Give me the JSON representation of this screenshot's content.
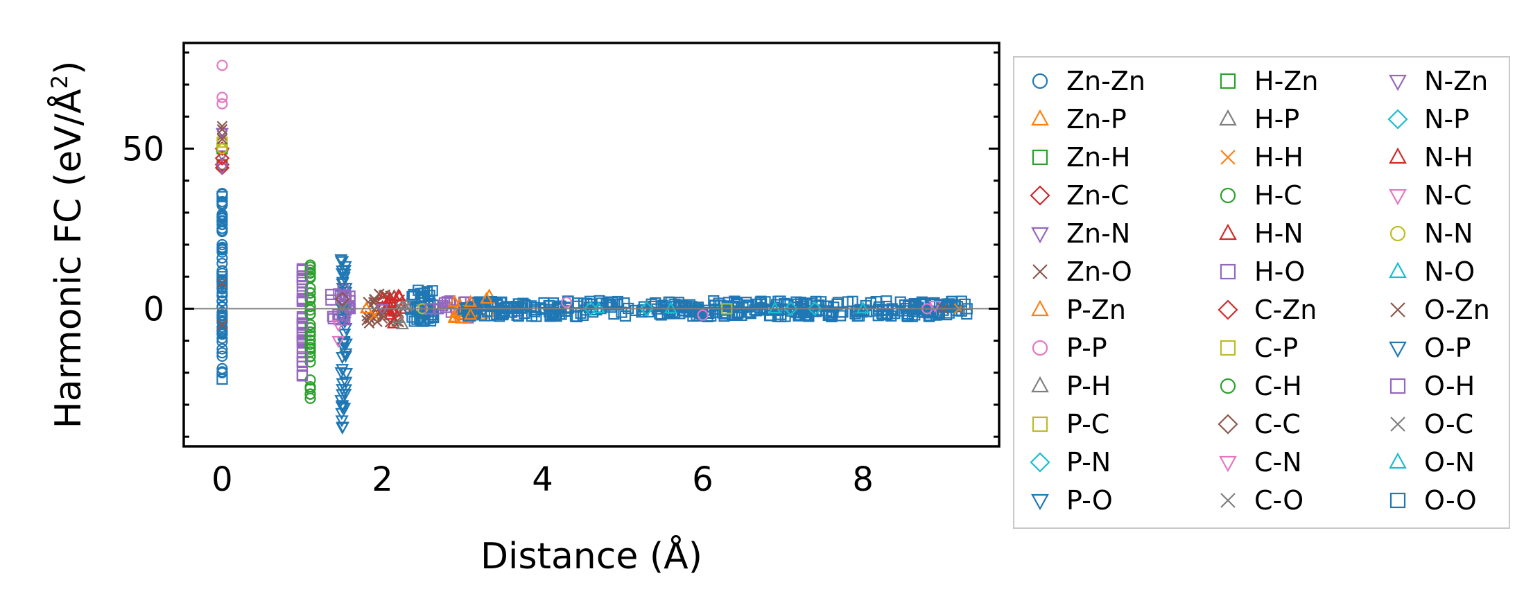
{
  "chart_data": {
    "type": "scatter",
    "xlabel": "Distance (Å)",
    "ylabel_main": "Harmonic FC (eV/Å",
    "ylabel_sup": "2",
    "ylabel_end": ")",
    "xlim": [
      -0.48,
      9.7
    ],
    "ylim": [
      -43,
      83
    ],
    "xticks": [
      0,
      2,
      4,
      6,
      8
    ],
    "yticks": [
      0,
      50
    ],
    "zero_line": true,
    "grid": false,
    "legend_position": "outside-right",
    "legend_columns": 3,
    "series": [
      {
        "name": "Zn-Zn",
        "marker": "circle",
        "color": "#1f77b4",
        "x": [
          0,
          0,
          0,
          0,
          0
        ],
        "y": [
          36,
          20,
          5,
          -8,
          -20
        ]
      },
      {
        "name": "Zn-P",
        "marker": "triangle-up",
        "color": "#ff7f0e",
        "x": [
          2.9,
          3.1,
          3.3
        ],
        "y": [
          2,
          -2,
          3
        ]
      },
      {
        "name": "Zn-H",
        "marker": "square",
        "color": "#2ca02c",
        "x": [
          0,
          0
        ],
        "y": [
          50,
          45
        ]
      },
      {
        "name": "Zn-C",
        "marker": "diamond",
        "color": "#d62728",
        "x": [
          0,
          0,
          0
        ],
        "y": [
          50,
          45,
          44
        ]
      },
      {
        "name": "Zn-N",
        "marker": "triangle-down",
        "color": "#9467bd",
        "x": [
          0,
          0
        ],
        "y": [
          48,
          44
        ]
      },
      {
        "name": "Zn-O",
        "marker": "x",
        "color": "#8c564b",
        "x": [
          0,
          0,
          0,
          0,
          1.9,
          2.0,
          2.1,
          2.2
        ],
        "y": [
          57,
          54,
          8,
          -5,
          2,
          -3,
          4,
          -1
        ]
      },
      {
        "name": "P-Zn",
        "marker": "triangle-up",
        "color": "#ff7f0e",
        "x": [
          1.8,
          2.9,
          3.1
        ],
        "y": [
          0,
          -3,
          2
        ]
      },
      {
        "name": "P-P",
        "marker": "circle",
        "color": "#e377c2",
        "x": [
          0,
          0,
          0,
          4.3,
          6.0,
          8.8
        ],
        "y": [
          76,
          66,
          64,
          2,
          -2,
          0
        ]
      },
      {
        "name": "P-H",
        "marker": "triangle-up",
        "color": "#7f7f7f",
        "x": [
          2.2,
          2.3
        ],
        "y": [
          -3,
          1
        ]
      },
      {
        "name": "P-C",
        "marker": "square",
        "color": "#bcbd22",
        "x": [
          0,
          6.3
        ],
        "y": [
          50,
          0
        ]
      },
      {
        "name": "P-N",
        "marker": "diamond",
        "color": "#17becf",
        "x": [
          5.3,
          7.1
        ],
        "y": [
          0,
          0
        ]
      },
      {
        "name": "P-O",
        "marker": "triangle-down",
        "color": "#1f77b4",
        "x": [
          1.5,
          1.5,
          1.5,
          1.52,
          1.55,
          1.5,
          1.5,
          1.5
        ],
        "y": [
          15,
          8,
          0,
          -10,
          -20,
          -30,
          -37,
          -25
        ]
      },
      {
        "name": "H-Zn",
        "marker": "square",
        "color": "#2ca02c",
        "x": [
          0
        ],
        "y": [
          50
        ]
      },
      {
        "name": "H-P",
        "marker": "triangle-up",
        "color": "#7f7f7f",
        "x": [
          2.25
        ],
        "y": [
          -5
        ]
      },
      {
        "name": "H-H",
        "marker": "x",
        "color": "#ff7f0e",
        "x": [
          1.9,
          9.2
        ],
        "y": [
          -2,
          0
        ]
      },
      {
        "name": "H-C",
        "marker": "circle",
        "color": "#2ca02c",
        "x": [
          1.1,
          1.1,
          1.1,
          1.1,
          1.1,
          1.1
        ],
        "y": [
          13,
          5,
          -5,
          -15,
          -25,
          -28
        ]
      },
      {
        "name": "H-N",
        "marker": "triangle-up",
        "color": "#d62728",
        "x": [
          2.0,
          2.1,
          2.2
        ],
        "y": [
          3,
          -2,
          4
        ]
      },
      {
        "name": "H-O",
        "marker": "square",
        "color": "#9467bd",
        "x": [
          1.0,
          1.0,
          1.0,
          1.0,
          1.0,
          1.5,
          2.7
        ],
        "y": [
          12,
          5,
          -5,
          -15,
          -21,
          3,
          0
        ]
      },
      {
        "name": "C-Zn",
        "marker": "diamond",
        "color": "#d62728",
        "x": [
          0
        ],
        "y": [
          47
        ]
      },
      {
        "name": "C-P",
        "marker": "square",
        "color": "#bcbd22",
        "x": [
          0
        ],
        "y": [
          52
        ]
      },
      {
        "name": "C-H",
        "marker": "circle",
        "color": "#2ca02c",
        "x": [
          1.1
        ],
        "y": [
          10
        ]
      },
      {
        "name": "C-C",
        "marker": "diamond",
        "color": "#8c564b",
        "x": [
          1.5
        ],
        "y": [
          3
        ]
      },
      {
        "name": "C-N",
        "marker": "triangle-down",
        "color": "#e377c2",
        "x": [
          1.45,
          1.45
        ],
        "y": [
          -5,
          -10
        ]
      },
      {
        "name": "C-O",
        "marker": "x",
        "color": "#7f7f7f",
        "x": [
          2.2
        ],
        "y": [
          1
        ]
      },
      {
        "name": "N-Zn",
        "marker": "triangle-down",
        "color": "#9467bd",
        "x": [
          0,
          2.0
        ],
        "y": [
          55,
          0
        ]
      },
      {
        "name": "N-P",
        "marker": "diamond",
        "color": "#17becf",
        "x": [
          4.6,
          7.4
        ],
        "y": [
          0,
          0
        ]
      },
      {
        "name": "N-H",
        "marker": "triangle-up",
        "color": "#d62728",
        "x": [
          2.1,
          2.15
        ],
        "y": [
          3,
          -1
        ]
      },
      {
        "name": "N-C",
        "marker": "triangle-down",
        "color": "#e377c2",
        "x": [
          8.9
        ],
        "y": [
          1
        ]
      },
      {
        "name": "N-N",
        "marker": "circle",
        "color": "#bcbd22",
        "x": [
          0,
          2.5
        ],
        "y": [
          50,
          0
        ]
      },
      {
        "name": "N-O",
        "marker": "triangle-up",
        "color": "#17becf",
        "x": [
          4.7,
          6.9
        ],
        "y": [
          0,
          0
        ]
      },
      {
        "name": "O-Zn",
        "marker": "x",
        "color": "#8c564b",
        "x": [
          0,
          0,
          1.9,
          2.0,
          9.0
        ],
        "y": [
          56,
          53,
          3,
          -2,
          0
        ]
      },
      {
        "name": "O-P",
        "marker": "triangle-down",
        "color": "#1f77b4",
        "x": [
          1.5,
          1.5,
          1.5
        ],
        "y": [
          12,
          -3,
          -15
        ]
      },
      {
        "name": "O-H",
        "marker": "square",
        "color": "#9467bd",
        "x": [
          1.0,
          1.0,
          1.5,
          2.6
        ],
        "y": [
          10,
          -18,
          -2,
          0
        ]
      },
      {
        "name": "O-C",
        "marker": "x",
        "color": "#7f7f7f",
        "x": [
          1.5,
          2.3
        ],
        "y": [
          0,
          1
        ]
      },
      {
        "name": "O-N",
        "marker": "triangle-up",
        "color": "#17becf",
        "x": [
          5.6,
          8.0
        ],
        "y": [
          0,
          0
        ]
      },
      {
        "name": "O-O",
        "marker": "square",
        "color": "#1f77b4",
        "x": [
          0,
          0,
          0,
          9.3
        ],
        "y": [
          35,
          10,
          -22,
          0
        ]
      }
    ],
    "dense_bands": [
      {
        "series": "Zn-Zn",
        "x_min": 0.0,
        "x_max": 0.0,
        "y_min": -20,
        "y_max": 36,
        "count": 60
      },
      {
        "series": "H-O",
        "x_min": 1.0,
        "x_max": 1.0,
        "y_min": -21,
        "y_max": 13,
        "count": 30
      },
      {
        "series": "H-C",
        "x_min": 1.1,
        "x_max": 1.1,
        "y_min": -28,
        "y_max": 14,
        "count": 30
      },
      {
        "series": "P-O",
        "x_min": 1.48,
        "x_max": 1.56,
        "y_min": -37,
        "y_max": 16,
        "count": 40
      },
      {
        "series": "H-O",
        "x_min": 1.35,
        "x_max": 1.6,
        "y_min": -4,
        "y_max": 6,
        "count": 20
      },
      {
        "series": "Zn-O",
        "x_min": 1.8,
        "x_max": 2.25,
        "y_min": -5,
        "y_max": 5,
        "count": 25
      },
      {
        "series": "H-N",
        "x_min": 1.95,
        "x_max": 2.3,
        "y_min": -5,
        "y_max": 5,
        "count": 12
      },
      {
        "series": "O-O",
        "x_min": 2.35,
        "x_max": 2.65,
        "y_min": -4,
        "y_max": 6,
        "count": 40
      },
      {
        "series": "H-O",
        "x_min": 2.7,
        "x_max": 3.2,
        "y_min": -3,
        "y_max": 3,
        "count": 20
      },
      {
        "series": "Zn-P",
        "x_min": 2.8,
        "x_max": 3.4,
        "y_min": -4,
        "y_max": 4,
        "count": 12
      },
      {
        "series": "O-O",
        "x_min": 3.0,
        "x_max": 9.3,
        "y_min": -2.5,
        "y_max": 2.5,
        "count": 400
      }
    ]
  }
}
